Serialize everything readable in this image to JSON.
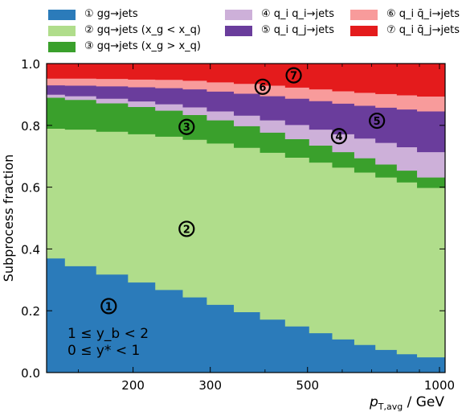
{
  "chart_data": {
    "type": "area",
    "stacked": true,
    "xscale": "log",
    "xlabel": "p_T,avg / GeV",
    "ylabel": "Subprocess fraction",
    "xlim": [
      127,
      1030
    ],
    "ylim": [
      0.0,
      1.0
    ],
    "xticks": [
      200,
      300,
      500,
      1000
    ],
    "xtick_labels": [
      "200",
      "300",
      "500",
      "1000"
    ],
    "yticks": [
      0.0,
      0.2,
      0.4,
      0.6,
      0.8,
      1.0
    ],
    "ytick_labels": [
      "0.0",
      "0.2",
      "0.4",
      "0.6",
      "0.8",
      "1.0"
    ],
    "minor_xticks": [
      150,
      400,
      600,
      700,
      800,
      900
    ],
    "annotation": {
      "line1": "1 ≤ y_b < 2",
      "line2": "0 ≤ y* < 1"
    },
    "bin_edges": [
      127,
      140,
      165,
      195,
      225,
      260,
      295,
      340,
      390,
      445,
      505,
      570,
      640,
      715,
      800,
      890,
      1030
    ],
    "series": [
      {
        "id": "s1",
        "marker": "1",
        "name": "① gg → jets",
        "color": "#2b7bba",
        "values": [
          0.37,
          0.345,
          0.318,
          0.292,
          0.268,
          0.244,
          0.22,
          0.196,
          0.172,
          0.15,
          0.128,
          0.108,
          0.09,
          0.074,
          0.06,
          0.05
        ]
      },
      {
        "id": "s2",
        "marker": "2",
        "name": "② gq → jets (x_g < x_q)",
        "color": "#b0dd8b",
        "values": [
          0.42,
          0.442,
          0.462,
          0.48,
          0.496,
          0.51,
          0.522,
          0.532,
          0.54,
          0.546,
          0.552,
          0.556,
          0.558,
          0.558,
          0.556,
          0.548
        ]
      },
      {
        "id": "s3",
        "marker": "3",
        "name": "③ gq → jets (x_g > x_q)",
        "color": "#3aa02c",
        "values": [
          0.1,
          0.096,
          0.092,
          0.088,
          0.084,
          0.08,
          0.075,
          0.07,
          0.065,
          0.06,
          0.055,
          0.05,
          0.046,
          0.042,
          0.038,
          0.034
        ]
      },
      {
        "id": "s4",
        "marker": "4",
        "name": "④ q_i q_i → jets",
        "color": "#cdb0d9",
        "values": [
          0.01,
          0.012,
          0.015,
          0.018,
          0.021,
          0.025,
          0.029,
          0.034,
          0.04,
          0.046,
          0.052,
          0.058,
          0.064,
          0.07,
          0.076,
          0.082
        ]
      },
      {
        "id": "s5",
        "marker": "5",
        "name": "⑤ q_i q_j → jets",
        "color": "#6a3d9c",
        "values": [
          0.03,
          0.034,
          0.04,
          0.046,
          0.052,
          0.058,
          0.064,
          0.071,
          0.078,
          0.085,
          0.092,
          0.099,
          0.106,
          0.114,
          0.122,
          0.132
        ]
      },
      {
        "id": "s6",
        "marker": "6",
        "name": "⑥ q_i q̄_i → jets",
        "color": "#f89b9b",
        "values": [
          0.022,
          0.023,
          0.024,
          0.025,
          0.027,
          0.028,
          0.03,
          0.032,
          0.034,
          0.036,
          0.038,
          0.04,
          0.042,
          0.044,
          0.046,
          0.048
        ]
      },
      {
        "id": "s7",
        "marker": "7",
        "name": "⑦ q_i q̄_j → jets",
        "color": "#e41b1c",
        "values": [
          0.048,
          0.048,
          0.049,
          0.051,
          0.052,
          0.055,
          0.06,
          0.065,
          0.071,
          0.077,
          0.083,
          0.089,
          0.094,
          0.098,
          0.102,
          0.106
        ]
      }
    ],
    "region_labels": [
      {
        "marker": "1",
        "x": 176,
        "y": 0.215
      },
      {
        "marker": "2",
        "x": 265,
        "y": 0.465
      },
      {
        "marker": "3",
        "x": 265,
        "y": 0.795
      },
      {
        "marker": "4",
        "x": 590,
        "y": 0.765
      },
      {
        "marker": "5",
        "x": 720,
        "y": 0.815
      },
      {
        "marker": "6",
        "x": 395,
        "y": 0.925
      },
      {
        "marker": "7",
        "x": 465,
        "y": 0.962
      }
    ]
  },
  "legend": [
    {
      "id": "s1",
      "col": 0,
      "row": 0,
      "label": "① gg→jets"
    },
    {
      "id": "s2",
      "col": 0,
      "row": 1,
      "label": "② gq→jets (x_g < x_q)"
    },
    {
      "id": "s3",
      "col": 0,
      "row": 2,
      "label": "③ gq→jets (x_g > x_q)"
    },
    {
      "id": "s4",
      "col": 1,
      "row": 0,
      "label": "④ q_i q_i→jets"
    },
    {
      "id": "s5",
      "col": 1,
      "row": 1,
      "label": "⑤ q_i q_j→jets"
    },
    {
      "id": "s6",
      "col": 2,
      "row": 0,
      "label": "⑥ q_i q̄_i→jets"
    },
    {
      "id": "s7",
      "col": 2,
      "row": 1,
      "label": "⑦ q_i q̄_j→jets"
    }
  ]
}
